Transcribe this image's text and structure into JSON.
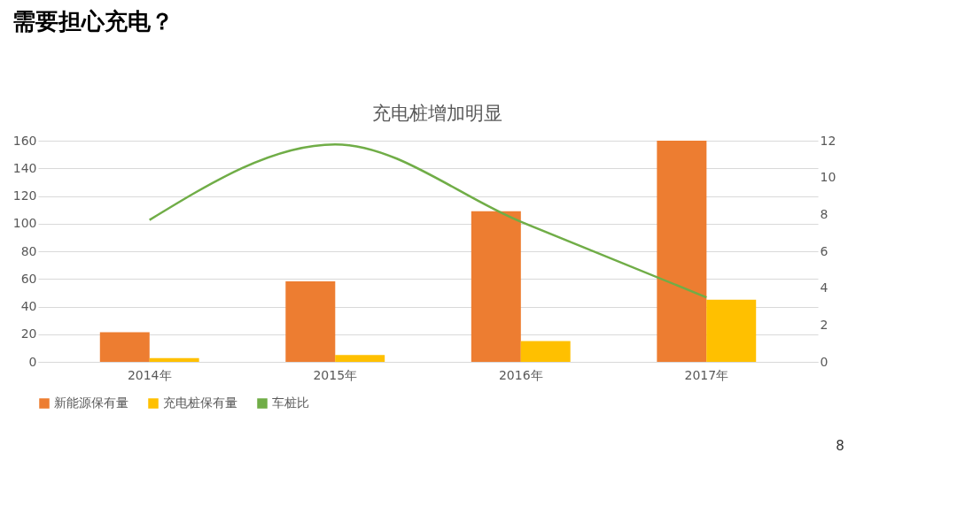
{
  "chart_data": {
    "type": "bar",
    "title": "需要担心充电？",
    "subtitle": "充电桩增加明显",
    "categories": [
      "2014年",
      "2015年",
      "2016年",
      "2017年"
    ],
    "series": [
      {
        "name": "新能源保有量",
        "color": "#ed7d31",
        "values": [
          21.5,
          58.3,
          109,
          160
        ]
      },
      {
        "name": "充电桩保有量",
        "color": "#ffc000",
        "values": [
          2.8,
          5,
          15,
          45
        ]
      },
      {
        "name": "车桩比",
        "type": "line",
        "axis": "y2",
        "color": "#70ad47",
        "values": [
          7.7,
          11.8,
          7.6,
          3.5
        ]
      }
    ],
    "ylim": [
      0,
      160
    ],
    "yticks": [
      0,
      20,
      40,
      60,
      80,
      100,
      120,
      140,
      160
    ],
    "y2lim": [
      0,
      12
    ],
    "y2ticks": [
      0,
      2,
      4,
      6,
      8,
      10,
      12
    ],
    "grid": "y",
    "legend": "bottom",
    "marker": "none",
    "line_style": "solid",
    "annotations": [
      "8"
    ]
  }
}
